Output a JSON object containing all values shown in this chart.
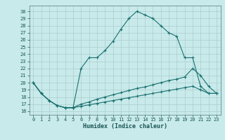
{
  "xlabel": "Humidex (Indice chaleur)",
  "background_color": "#c8eaea",
  "grid_color": "#aacccc",
  "line_color": "#1a7070",
  "xlim": [
    -0.5,
    23.5
  ],
  "ylim": [
    15.5,
    30.8
  ],
  "yticks": [
    16,
    17,
    18,
    19,
    20,
    21,
    22,
    23,
    24,
    25,
    26,
    27,
    28,
    29,
    30
  ],
  "xticks": [
    0,
    1,
    2,
    3,
    4,
    5,
    6,
    7,
    8,
    9,
    10,
    11,
    12,
    13,
    14,
    15,
    16,
    17,
    18,
    19,
    20,
    21,
    22,
    23
  ],
  "x": [
    0,
    1,
    2,
    3,
    4,
    5,
    6,
    7,
    8,
    9,
    10,
    11,
    12,
    13,
    14,
    15,
    16,
    17,
    18,
    19,
    20,
    21,
    22,
    23
  ],
  "series1": [
    20.0,
    18.5,
    17.5,
    16.8,
    16.5,
    16.5,
    22.0,
    23.5,
    23.5,
    24.5,
    25.8,
    27.5,
    29.0,
    30.0,
    29.5,
    29.0,
    28.0,
    27.0,
    26.5,
    23.5,
    23.5,
    19.5,
    18.5,
    18.5
  ],
  "series2": [
    20.0,
    18.5,
    17.5,
    16.8,
    16.5,
    16.5,
    17.0,
    17.3,
    17.7,
    18.0,
    18.3,
    18.6,
    18.9,
    19.2,
    19.4,
    19.7,
    20.0,
    20.3,
    20.5,
    20.8,
    22.0,
    21.0,
    19.5,
    18.5
  ],
  "series3": [
    20.0,
    18.5,
    17.5,
    16.8,
    16.5,
    16.5,
    16.7,
    16.9,
    17.1,
    17.3,
    17.5,
    17.7,
    17.9,
    18.1,
    18.3,
    18.5,
    18.7,
    18.9,
    19.1,
    19.3,
    19.5,
    19.0,
    18.5,
    18.5
  ]
}
